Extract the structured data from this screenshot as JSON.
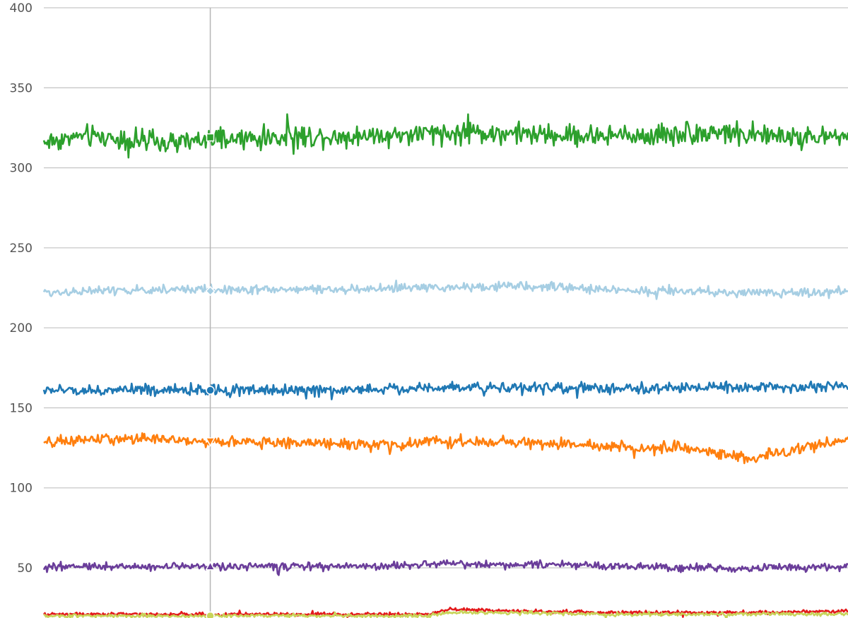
{
  "chart_data": {
    "type": "line",
    "title": "",
    "xlabel": "",
    "ylabel": "",
    "ylim": [
      20,
      400
    ],
    "yticks": [
      50,
      100,
      150,
      200,
      250,
      300,
      350,
      400
    ],
    "grid": "horizontal",
    "legend": "none",
    "cursor": {
      "x_fraction": 0.207
    },
    "series": [
      {
        "color": "#2ca02c",
        "marker": "square",
        "cursor_value": 319,
        "noise": 5,
        "ticks_noise": 11,
        "x": [
          0,
          0.05,
          0.1,
          0.15,
          0.2,
          0.25,
          0.3,
          0.35,
          0.4,
          0.45,
          0.5,
          0.55,
          0.6,
          0.65,
          0.7,
          0.75,
          0.8,
          0.85,
          0.9,
          0.95,
          1
        ],
        "values": [
          316,
          320,
          318,
          315,
          317,
          318,
          319,
          320,
          320,
          321,
          321,
          322,
          321,
          320,
          320,
          320,
          322,
          322,
          320,
          319,
          320
        ]
      },
      {
        "color": "#a6cee3",
        "marker": "diamond",
        "cursor_value": 223,
        "noise": 2,
        "ticks_noise": 5,
        "x": [
          0,
          0.05,
          0.1,
          0.15,
          0.2,
          0.25,
          0.3,
          0.35,
          0.4,
          0.45,
          0.5,
          0.55,
          0.6,
          0.65,
          0.7,
          0.75,
          0.8,
          0.85,
          0.9,
          0.95,
          1
        ],
        "values": [
          222,
          223,
          223,
          224,
          224,
          224,
          224,
          224,
          224,
          225,
          225,
          226,
          226,
          225,
          224,
          223,
          223,
          222,
          222,
          222,
          223
        ]
      },
      {
        "color": "#1f78b4",
        "marker": "circle",
        "cursor_value": 161,
        "noise": 2.5,
        "ticks_noise": 5,
        "x": [
          0,
          0.05,
          0.1,
          0.15,
          0.2,
          0.25,
          0.3,
          0.35,
          0.4,
          0.45,
          0.5,
          0.55,
          0.6,
          0.65,
          0.7,
          0.75,
          0.8,
          0.85,
          0.9,
          0.95,
          1
        ],
        "values": [
          161,
          161,
          161,
          161,
          161,
          161,
          161,
          161,
          162,
          162,
          163,
          163,
          163,
          162,
          162,
          162,
          163,
          163,
          163,
          163,
          164
        ]
      },
      {
        "color": "#ff7f0e",
        "marker": "triangle-down",
        "cursor_value": 129,
        "noise": 2.5,
        "ticks_noise": 5,
        "x": [
          0,
          0.05,
          0.1,
          0.15,
          0.2,
          0.25,
          0.3,
          0.35,
          0.4,
          0.45,
          0.48,
          0.5,
          0.55,
          0.6,
          0.65,
          0.7,
          0.75,
          0.8,
          0.85,
          0.88,
          0.9,
          0.95,
          1
        ],
        "values": [
          128,
          130,
          131,
          130,
          129,
          129,
          128,
          128,
          127,
          126,
          130,
          129,
          128,
          128,
          127,
          126,
          125,
          124,
          121,
          118,
          121,
          125,
          131
        ]
      },
      {
        "color": "#6a3d9a",
        "marker": "triangle",
        "cursor_value": 51,
        "noise": 1.8,
        "ticks_noise": 4,
        "x": [
          0,
          0.05,
          0.1,
          0.15,
          0.2,
          0.25,
          0.3,
          0.35,
          0.4,
          0.45,
          0.5,
          0.55,
          0.6,
          0.65,
          0.7,
          0.75,
          0.8,
          0.85,
          0.9,
          0.95,
          1
        ],
        "values": [
          50,
          51,
          51,
          51,
          51,
          51,
          51,
          51,
          51,
          51,
          53,
          52,
          52,
          52,
          51,
          51,
          50,
          50,
          50,
          50,
          51
        ]
      },
      {
        "color": "#e31a1c",
        "marker": "none",
        "cursor_value": 21,
        "noise": 0.8,
        "ticks_noise": 2,
        "x": [
          0,
          0.1,
          0.2,
          0.3,
          0.4,
          0.48,
          0.5,
          0.6,
          0.7,
          0.8,
          0.9,
          1
        ],
        "values": [
          21,
          21,
          21,
          21,
          21,
          21,
          24,
          23,
          22,
          22,
          22,
          23
        ]
      },
      {
        "color": "#c8d45a",
        "marker": "circle",
        "cursor_value": 20,
        "noise": 0.8,
        "ticks_noise": 2,
        "x": [
          0,
          0.1,
          0.2,
          0.3,
          0.4,
          0.48,
          0.5,
          0.6,
          0.7,
          0.8,
          0.9,
          1
        ],
        "values": [
          20,
          20,
          20,
          20,
          20,
          20,
          22,
          22,
          21,
          21,
          21,
          21
        ]
      }
    ]
  }
}
